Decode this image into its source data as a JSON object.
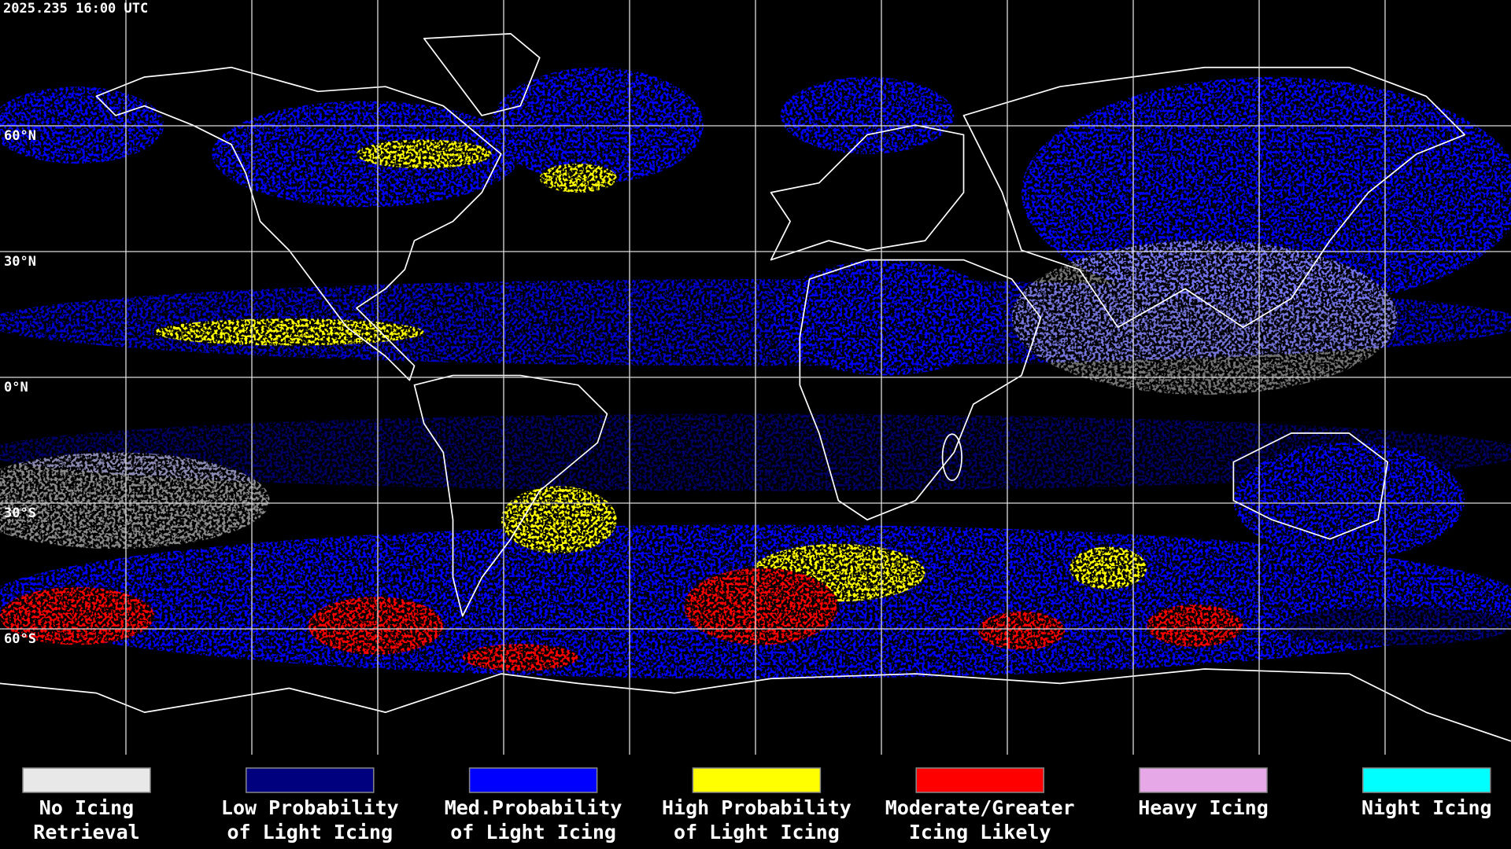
{
  "header": {
    "timestamp": "2025.235 16:00 UTC"
  },
  "map": {
    "lat_labels": [
      "60°N",
      "30°N",
      "0°N",
      "30°S",
      "60°S"
    ]
  },
  "legend": {
    "items": [
      {
        "color": "#e8e8e8",
        "lines": [
          "No Icing",
          "Retrieval"
        ]
      },
      {
        "color": "#00007f",
        "lines": [
          "Low Probability",
          "of Light Icing"
        ]
      },
      {
        "color": "#0000ff",
        "lines": [
          "Med.Probability",
          "of Light Icing"
        ]
      },
      {
        "color": "#ffff00",
        "lines": [
          "High Probability",
          "of Light Icing"
        ]
      },
      {
        "color": "#ff0000",
        "lines": [
          "Moderate/Greater",
          "Icing Likely"
        ]
      },
      {
        "color": "#e6a8e6",
        "lines": [
          "Heavy Icing"
        ]
      },
      {
        "color": "#00ffff",
        "lines": [
          "Night Icing"
        ]
      }
    ]
  }
}
